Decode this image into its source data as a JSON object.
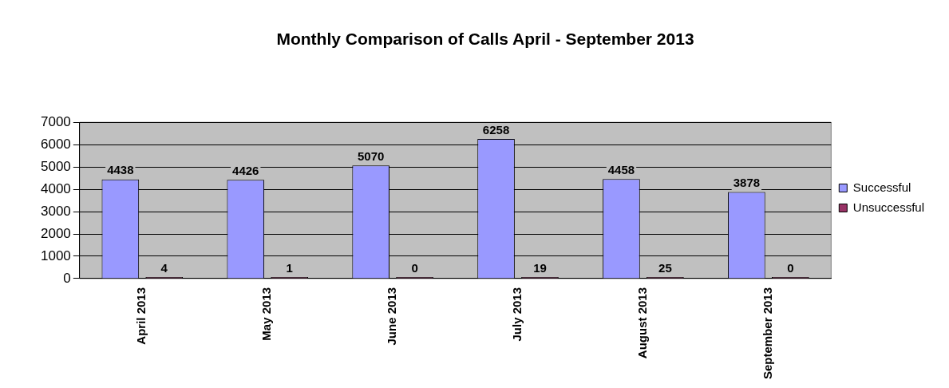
{
  "chart_data": {
    "type": "bar",
    "title": "Monthly Comparison of Calls April - September 2013",
    "categories": [
      "April 2013",
      "May 2013",
      "June 2013",
      "July 2013",
      "August 2013",
      "September 2013"
    ],
    "series": [
      {
        "name": "Successful",
        "color": "#9999ff",
        "values": [
          4438,
          4426,
          5070,
          6258,
          4458,
          3878
        ]
      },
      {
        "name": "Unsuccessful",
        "color": "#993366",
        "values": [
          4,
          1,
          0,
          19,
          25,
          0
        ]
      }
    ],
    "ylim": [
      0,
      7000
    ],
    "yticks": [
      0,
      1000,
      2000,
      3000,
      4000,
      5000,
      6000,
      7000
    ],
    "grid": "y",
    "legend": "right",
    "data_labels": true
  }
}
